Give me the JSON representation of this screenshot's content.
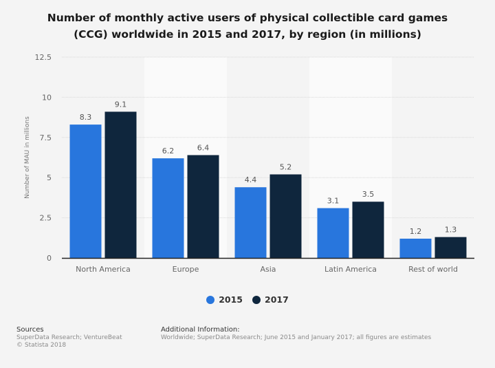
{
  "title_lines": [
    "Number of monthly active users of physical collectible card games",
    "(CCG) worldwide in 2015 and 2017, by region (in millions)"
  ],
  "colors": {
    "series_2015": "#2876dd",
    "series_2017": "#0f263d",
    "band": "#fafafa",
    "grid": "#d8d8d8",
    "axis": "#222222"
  },
  "chart_data": {
    "type": "bar",
    "title": "Number of monthly active users of physical collectible card games (CCG) worldwide in 2015 and 2017, by region (in millions)",
    "xlabel": "",
    "ylabel": "Number of MAU in millions",
    "ylim": [
      0,
      12.5
    ],
    "yticks": [
      0,
      2.5,
      5,
      7.5,
      10,
      12.5
    ],
    "ytick_labels": [
      "0",
      "2.5",
      "5",
      "7.5",
      "10",
      "12.5"
    ],
    "grid": true,
    "categories": [
      "North America",
      "Europe",
      "Asia",
      "Latin America",
      "Rest of world"
    ],
    "series": [
      {
        "name": "2015",
        "values": [
          8.3,
          6.2,
          4.4,
          3.1,
          1.2
        ]
      },
      {
        "name": "2017",
        "values": [
          9.1,
          6.4,
          5.2,
          3.5,
          1.3
        ]
      }
    ],
    "legend": {
      "placement": "bottom-center",
      "entries": [
        "2015",
        "2017"
      ]
    }
  },
  "footer": {
    "sources_heading": "Sources",
    "sources_lines": [
      "SuperData Research; VentureBeat",
      "© Statista 2018"
    ],
    "additional_heading": "Additional Information:",
    "additional_text": "Worldwide; SuperData Research; June 2015 and January 2017; all figures are estimates"
  }
}
